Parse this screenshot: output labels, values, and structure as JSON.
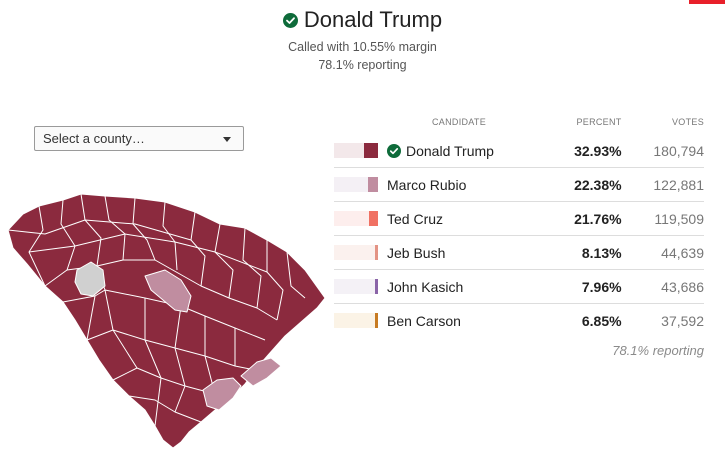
{
  "header": {
    "winner": "Donald Trump",
    "called_text": "Called with 10.55% margin",
    "reporting_text": "78.1% reporting"
  },
  "county_select": {
    "label": "Select a county…"
  },
  "table": {
    "col_candidate": "CANDIDATE",
    "col_percent": "PERCENT",
    "col_votes": "VOTES",
    "rows": [
      {
        "name": "Donald Trump",
        "percent": "32.93%",
        "votes": "180,794",
        "winner": true,
        "color": "#8b2a3e",
        "bg": "#f3e8ea",
        "share": 0.3293
      },
      {
        "name": "Marco Rubio",
        "percent": "22.38%",
        "votes": "122,881",
        "winner": false,
        "color": "#c08da0",
        "bg": "#f4f0f5",
        "share": 0.2238
      },
      {
        "name": "Ted Cruz",
        "percent": "21.76%",
        "votes": "119,509",
        "winner": false,
        "color": "#f07163",
        "bg": "#fdeeed",
        "share": 0.2176
      },
      {
        "name": "Jeb Bush",
        "percent": "8.13%",
        "votes": "44,639",
        "winner": false,
        "color": "#e39384",
        "bg": "#fbf1ee",
        "share": 0.0813
      },
      {
        "name": "John Kasich",
        "percent": "7.96%",
        "votes": "43,686",
        "winner": false,
        "color": "#8a64a8",
        "bg": "#f4f1f6",
        "share": 0.0796
      },
      {
        "name": "Ben Carson",
        "percent": "6.85%",
        "votes": "37,592",
        "winner": false,
        "color": "#c77b22",
        "bg": "#fbf3e6",
        "share": 0.0685
      }
    ]
  },
  "footer": {
    "reporting_text": "78.1% reporting"
  },
  "map": {
    "colors": {
      "trump": "#8b2a3e",
      "rubio": "#c08da0",
      "no_data": "#d0d0d0",
      "border": "#ffffff"
    }
  }
}
